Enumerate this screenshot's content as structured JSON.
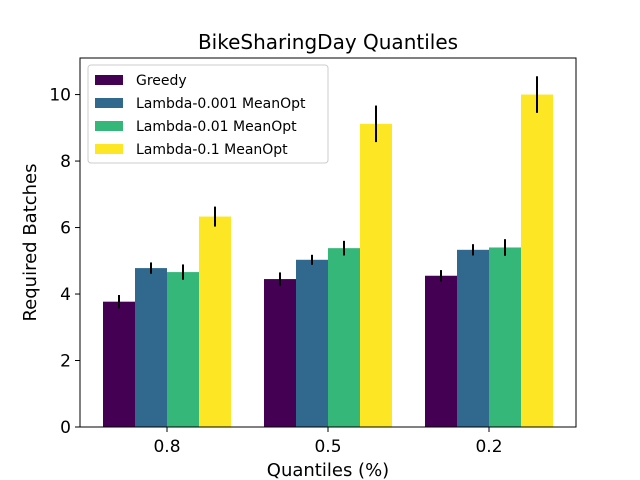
{
  "chart_data": {
    "type": "bar",
    "title": "BikeSharingDay Quantiles",
    "xlabel": "Quantiles (%)",
    "ylabel": "Required Batches",
    "categories": [
      "0.8",
      "0.5",
      "0.2"
    ],
    "ylim": [
      0,
      11.1
    ],
    "yticks": [
      0,
      2,
      4,
      6,
      8,
      10
    ],
    "grid": false,
    "legend_position": "top-left",
    "series": [
      {
        "name": "Greedy",
        "color": "#440154",
        "values": [
          3.77,
          4.45,
          4.55
        ],
        "errors": [
          0.2,
          0.2,
          0.17
        ]
      },
      {
        "name": "Lambda-0.001 MeanOpt",
        "color": "#31688e",
        "values": [
          4.78,
          5.03,
          5.33
        ],
        "errors": [
          0.17,
          0.15,
          0.17
        ]
      },
      {
        "name": "Lambda-0.01 MeanOpt",
        "color": "#35b779",
        "values": [
          4.66,
          5.38,
          5.4
        ],
        "errors": [
          0.23,
          0.22,
          0.25
        ]
      },
      {
        "name": "Lambda-0.1 MeanOpt",
        "color": "#fde725",
        "values": [
          6.33,
          9.12,
          10.0
        ],
        "errors": [
          0.3,
          0.55,
          0.55
        ]
      }
    ]
  }
}
